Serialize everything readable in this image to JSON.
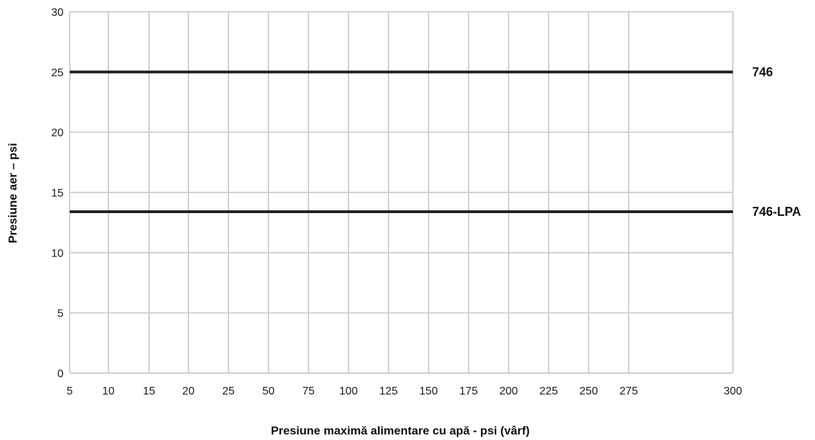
{
  "chart_data": {
    "type": "line",
    "title": "",
    "xlabel": "Presiune maximă alimentare cu apă - psi (vârf)",
    "ylabel": "Presiune aer – psi",
    "x_categories": [
      "5",
      "10",
      "15",
      "20",
      "25",
      "50",
      "75",
      "100",
      "125",
      "150",
      "175",
      "200",
      "225",
      "250",
      "275",
      "300"
    ],
    "y_ticks": [
      "0",
      "5",
      "10",
      "15",
      "20",
      "25",
      "30"
    ],
    "ylim": [
      0,
      30
    ],
    "grid": true,
    "series": [
      {
        "name": "746",
        "value": 25
      },
      {
        "name": "746-LPA",
        "value": 13.4
      }
    ],
    "colors": {
      "grid": "#cfcfcf",
      "series": "#1f1f1f"
    }
  }
}
